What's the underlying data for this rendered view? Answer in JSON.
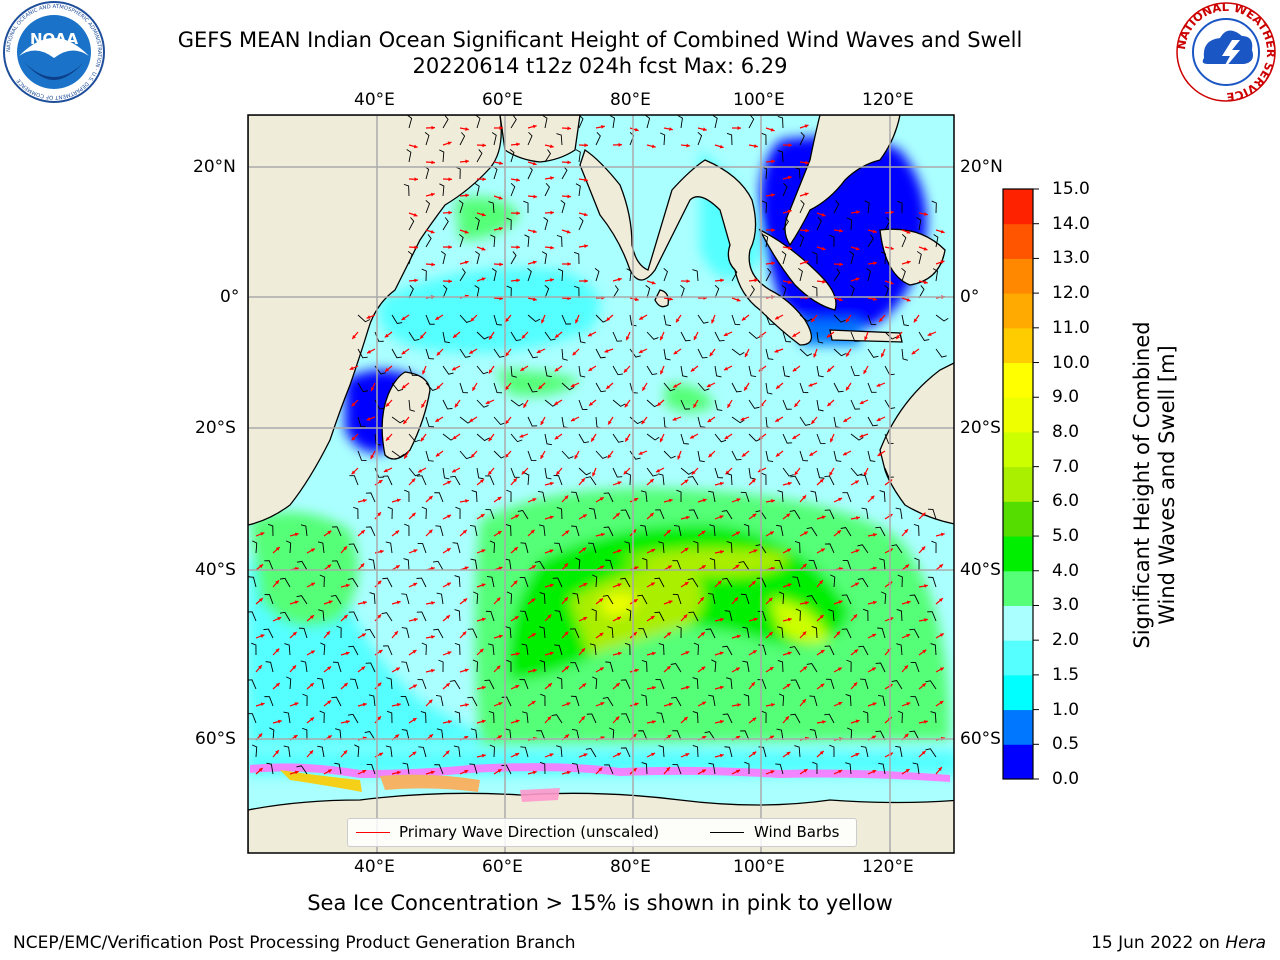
{
  "header": {
    "title_line1": "GEFS MEAN Indian Ocean Significant Height of Combined Wind Waves and Swell",
    "title_line2": "20220614 t12z 024h fcst   Max: 6.29"
  },
  "logos": {
    "noaa_text": "NOAA",
    "noaa_ring_text": "NATIONAL OCEANIC AND ATMOSPHERIC ADMINISTRATION · U.S. DEPARTMENT OF COMMERCE",
    "nws_ring_text": "NATIONAL WEATHER SERVICE"
  },
  "map": {
    "lon_labels": [
      "40°E",
      "60°E",
      "80°E",
      "100°E",
      "120°E"
    ],
    "lat_labels": [
      "20°N",
      "0°",
      "20°S",
      "40°S",
      "60°S"
    ],
    "colors": {
      "land": "#efedda",
      "ocean_low": "#aaffff",
      "ocean_mid": "#55ffff",
      "green": "#55ff55",
      "blue": "#0000ff",
      "ice": "#ff77ff",
      "grid": "#aaaaaa"
    }
  },
  "colorbar": {
    "title_line1": "Significant Height of Combined",
    "title_line2": "Wind Waves and Swell [m]",
    "ticks": [
      "15.0",
      "14.0",
      "13.0",
      "12.0",
      "11.0",
      "10.0",
      "9.0",
      "8.0",
      "7.0",
      "6.0",
      "5.0",
      "4.0",
      "3.0",
      "2.0",
      "1.5",
      "1.0",
      "0.5",
      "0.0"
    ],
    "colors_bottom_to_top": [
      "#0000ff",
      "#0077ff",
      "#00ffff",
      "#55ffff",
      "#aaffff",
      "#55ff77",
      "#00ee00",
      "#55dd00",
      "#aaee00",
      "#ccff00",
      "#eeff00",
      "#ffff00",
      "#ffcc00",
      "#ffaa00",
      "#ff8800",
      "#ff5500",
      "#ff2200"
    ]
  },
  "legend": {
    "wave_direction": "Primary Wave Direction (unscaled)",
    "wind_barbs": "Wind Barbs",
    "wave_color": "#ff0000",
    "barb_color": "#000000"
  },
  "caption": "Sea Ice Concentration > 15% is shown in pink to yellow",
  "footer": {
    "left": "NCEP/EMC/Verification Post Processing Product Generation Branch",
    "right_date": "15 Jun 2022 on ",
    "right_machine": "Hera"
  }
}
